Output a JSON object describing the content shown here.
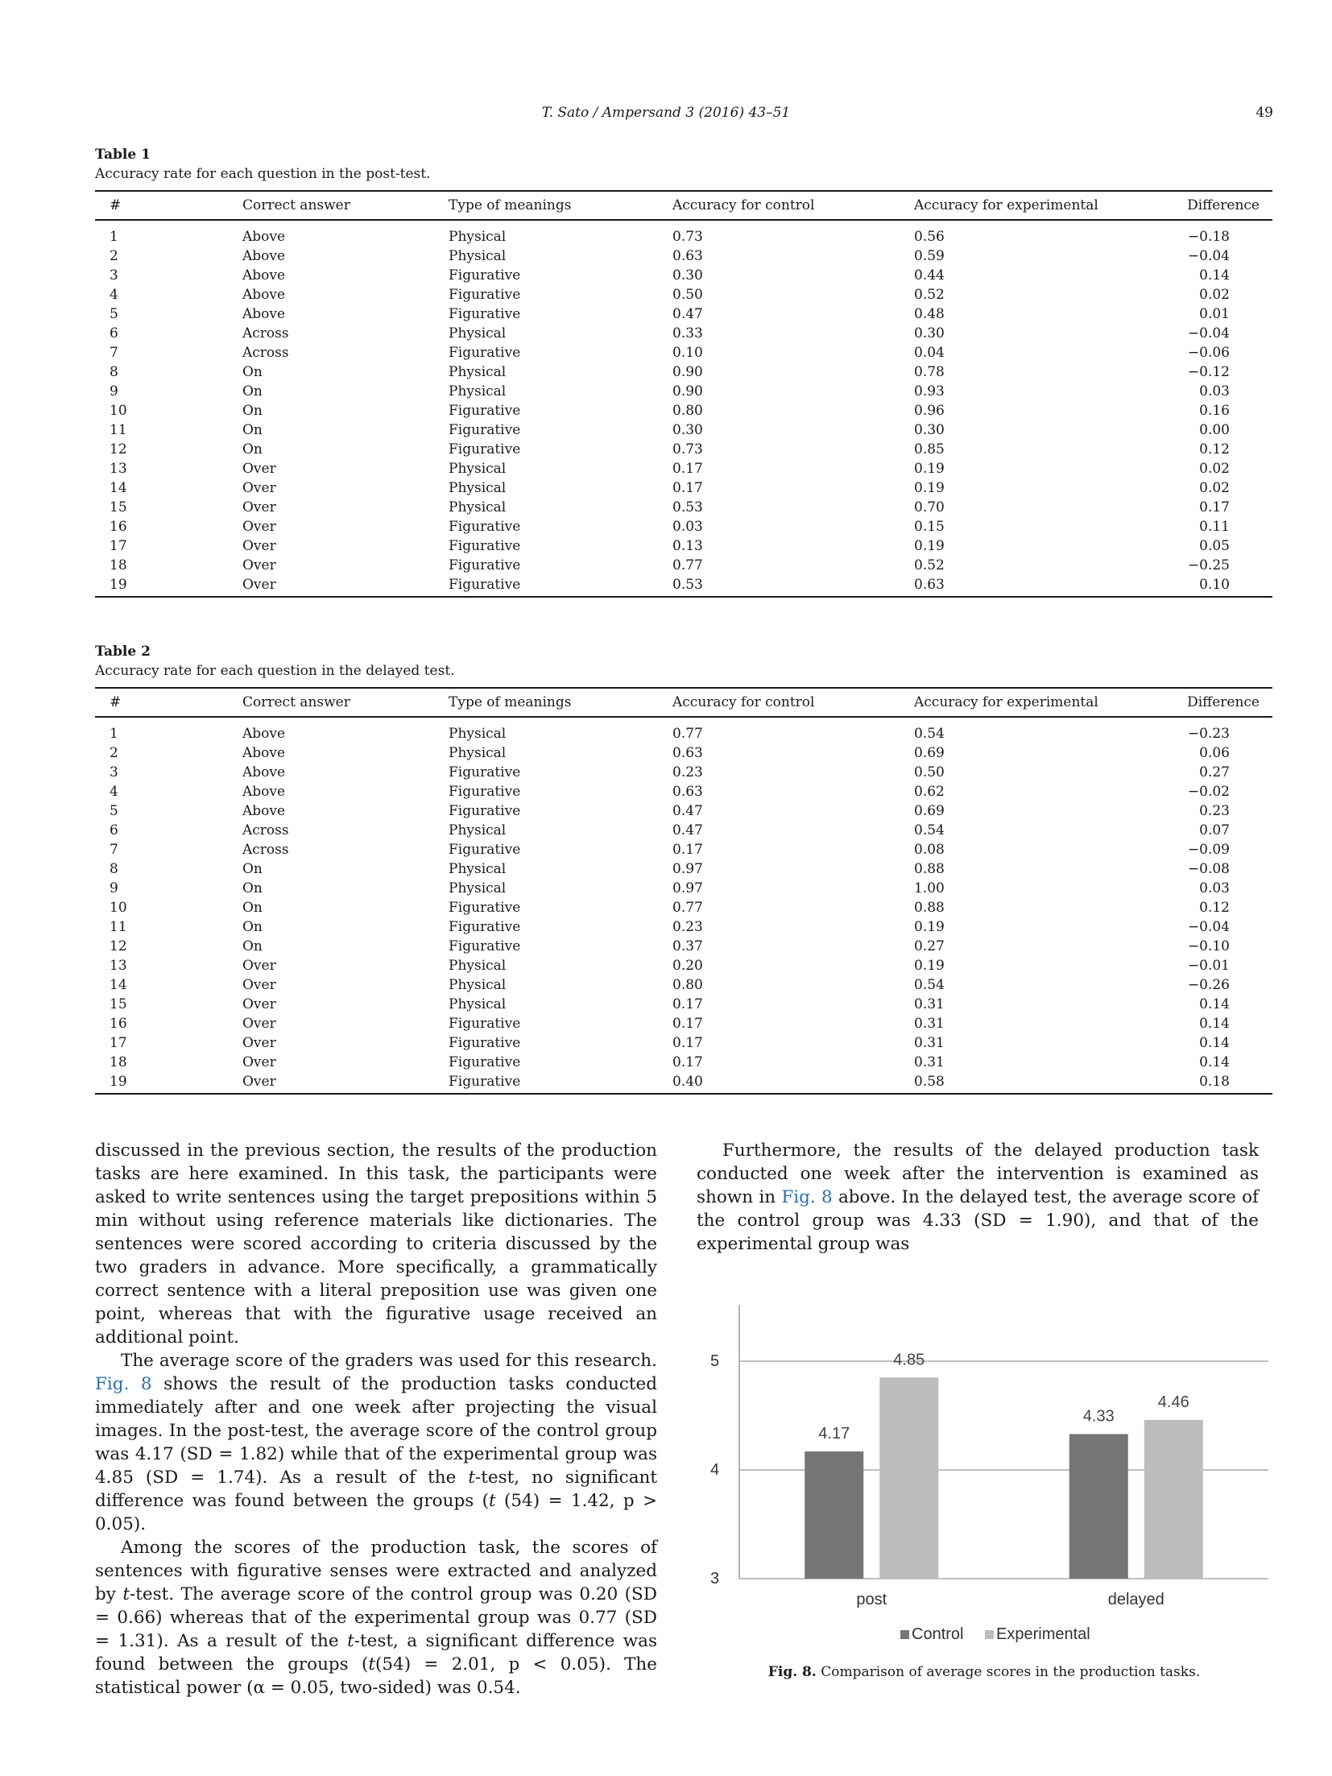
{
  "header": {
    "running_title": "T. Sato / Ampersand 3 (2016) 43–51",
    "page_number": "49"
  },
  "table1": {
    "label": "Table 1",
    "caption": "Accuracy rate for each question in the post-test.",
    "columns": [
      "#",
      "Correct answer",
      "Type of meanings",
      "Accuracy for control",
      "Accuracy for experimental",
      "Difference"
    ],
    "rows": [
      [
        "1",
        "Above",
        "Physical",
        "0.73",
        "0.56",
        "−0.18"
      ],
      [
        "2",
        "Above",
        "Physical",
        "0.63",
        "0.59",
        "−0.04"
      ],
      [
        "3",
        "Above",
        "Figurative",
        "0.30",
        "0.44",
        "0.14"
      ],
      [
        "4",
        "Above",
        "Figurative",
        "0.50",
        "0.52",
        "0.02"
      ],
      [
        "5",
        "Above",
        "Figurative",
        "0.47",
        "0.48",
        "0.01"
      ],
      [
        "6",
        "Across",
        "Physical",
        "0.33",
        "0.30",
        "−0.04"
      ],
      [
        "7",
        "Across",
        "Figurative",
        "0.10",
        "0.04",
        "−0.06"
      ],
      [
        "8",
        "On",
        "Physical",
        "0.90",
        "0.78",
        "−0.12"
      ],
      [
        "9",
        "On",
        "Physical",
        "0.90",
        "0.93",
        "0.03"
      ],
      [
        "10",
        "On",
        "Figurative",
        "0.80",
        "0.96",
        "0.16"
      ],
      [
        "11",
        "On",
        "Figurative",
        "0.30",
        "0.30",
        "0.00"
      ],
      [
        "12",
        "On",
        "Figurative",
        "0.73",
        "0.85",
        "0.12"
      ],
      [
        "13",
        "Over",
        "Physical",
        "0.17",
        "0.19",
        "0.02"
      ],
      [
        "14",
        "Over",
        "Physical",
        "0.17",
        "0.19",
        "0.02"
      ],
      [
        "15",
        "Over",
        "Physical",
        "0.53",
        "0.70",
        "0.17"
      ],
      [
        "16",
        "Over",
        "Figurative",
        "0.03",
        "0.15",
        "0.11"
      ],
      [
        "17",
        "Over",
        "Figurative",
        "0.13",
        "0.19",
        "0.05"
      ],
      [
        "18",
        "Over",
        "Figurative",
        "0.77",
        "0.52",
        "−0.25"
      ],
      [
        "19",
        "Over",
        "Figurative",
        "0.53",
        "0.63",
        "0.10"
      ]
    ]
  },
  "table2": {
    "label": "Table 2",
    "caption": "Accuracy rate for each question in the delayed test.",
    "columns": [
      "#",
      "Correct answer",
      "Type of meanings",
      "Accuracy for control",
      "Accuracy for experimental",
      "Difference"
    ],
    "rows": [
      [
        "1",
        "Above",
        "Physical",
        "0.77",
        "0.54",
        "−0.23"
      ],
      [
        "2",
        "Above",
        "Physical",
        "0.63",
        "0.69",
        "0.06"
      ],
      [
        "3",
        "Above",
        "Figurative",
        "0.23",
        "0.50",
        "0.27"
      ],
      [
        "4",
        "Above",
        "Figurative",
        "0.63",
        "0.62",
        "−0.02"
      ],
      [
        "5",
        "Above",
        "Figurative",
        "0.47",
        "0.69",
        "0.23"
      ],
      [
        "6",
        "Across",
        "Physical",
        "0.47",
        "0.54",
        "0.07"
      ],
      [
        "7",
        "Across",
        "Figurative",
        "0.17",
        "0.08",
        "−0.09"
      ],
      [
        "8",
        "On",
        "Physical",
        "0.97",
        "0.88",
        "−0.08"
      ],
      [
        "9",
        "On",
        "Physical",
        "0.97",
        "1.00",
        "0.03"
      ],
      [
        "10",
        "On",
        "Figurative",
        "0.77",
        "0.88",
        "0.12"
      ],
      [
        "11",
        "On",
        "Figurative",
        "0.23",
        "0.19",
        "−0.04"
      ],
      [
        "12",
        "On",
        "Figurative",
        "0.37",
        "0.27",
        "−0.10"
      ],
      [
        "13",
        "Over",
        "Physical",
        "0.20",
        "0.19",
        "−0.01"
      ],
      [
        "14",
        "Over",
        "Physical",
        "0.80",
        "0.54",
        "−0.26"
      ],
      [
        "15",
        "Over",
        "Physical",
        "0.17",
        "0.31",
        "0.14"
      ],
      [
        "16",
        "Over",
        "Figurative",
        "0.17",
        "0.31",
        "0.14"
      ],
      [
        "17",
        "Over",
        "Figurative",
        "0.17",
        "0.31",
        "0.14"
      ],
      [
        "18",
        "Over",
        "Figurative",
        "0.17",
        "0.31",
        "0.14"
      ],
      [
        "19",
        "Over",
        "Figurative",
        "0.40",
        "0.58",
        "0.18"
      ]
    ]
  },
  "body": {
    "left": [
      {
        "indent": false,
        "parts": [
          {
            "t": "discussed in the previous section, the results of the production tasks are here examined. In this task, the participants were asked to write sentences using the target prepositions within 5 min without using reference materials like dictionaries. The sentences were scored according to criteria discussed by the two graders in advance. More specifically, a grammatically correct sentence with a literal preposition use was given one point, whereas that with the figurative usage received an additional point."
          }
        ]
      },
      {
        "indent": true,
        "parts": [
          {
            "t": "The average score of the graders was used for this research. "
          },
          {
            "t": "Fig. 8",
            "s": "link"
          },
          {
            "t": " shows the result of the production tasks conducted immediately after and one week after projecting the visual images. In the post-test, the average score of the control group was 4.17 (SD = 1.82) while that of the experimental group was 4.85 (SD = 1.74). As a result of the "
          },
          {
            "t": "t",
            "s": "ital"
          },
          {
            "t": "-test, no significant difference was found between the groups ("
          },
          {
            "t": "t",
            "s": "ital"
          },
          {
            "t": " (54) = 1.42, p > 0.05)."
          }
        ]
      },
      {
        "indent": true,
        "parts": [
          {
            "t": "Among the scores of the production task, the scores of sentences with figurative senses were extracted and analyzed by "
          },
          {
            "t": "t",
            "s": "ital"
          },
          {
            "t": "-test. The average score of the control group was 0.20 (SD = 0.66) whereas that of the experimental group was 0.77 (SD = 1.31). As a result of the "
          },
          {
            "t": "t",
            "s": "ital"
          },
          {
            "t": "-test, a significant difference was found between the groups ("
          },
          {
            "t": "t",
            "s": "ital"
          },
          {
            "t": "(54) = 2.01, p < 0.05). The statistical power (α = 0.05, two-sided) was 0.54."
          }
        ]
      }
    ],
    "right": [
      {
        "indent": true,
        "parts": [
          {
            "t": "Furthermore, the results of the delayed production task conducted one week after the intervention is examined as shown in "
          },
          {
            "t": "Fig. 8",
            "s": "link"
          },
          {
            "t": " above. In the delayed test, the average score of the control group was 4.33 (SD = 1.90), and that of the experimental group was"
          }
        ]
      }
    ]
  },
  "figure": {
    "label": "Fig. 8.",
    "caption": "Comparison of average scores in the production tasks."
  },
  "chart_data": {
    "type": "bar",
    "categories": [
      "post",
      "delayed"
    ],
    "series": [
      {
        "name": "Control",
        "values": [
          4.17,
          4.33
        ],
        "color": "#767676"
      },
      {
        "name": "Experimental",
        "values": [
          4.85,
          4.46
        ],
        "color": "#bdbdbd"
      }
    ],
    "ylim": [
      3,
      5
    ],
    "yticks": [
      3,
      4,
      5
    ],
    "data_labels": [
      "4.17",
      "4.33",
      "4.85",
      "4.46"
    ],
    "grid": true,
    "legend": "bottom",
    "title": "",
    "xlabel": "",
    "ylabel": ""
  }
}
